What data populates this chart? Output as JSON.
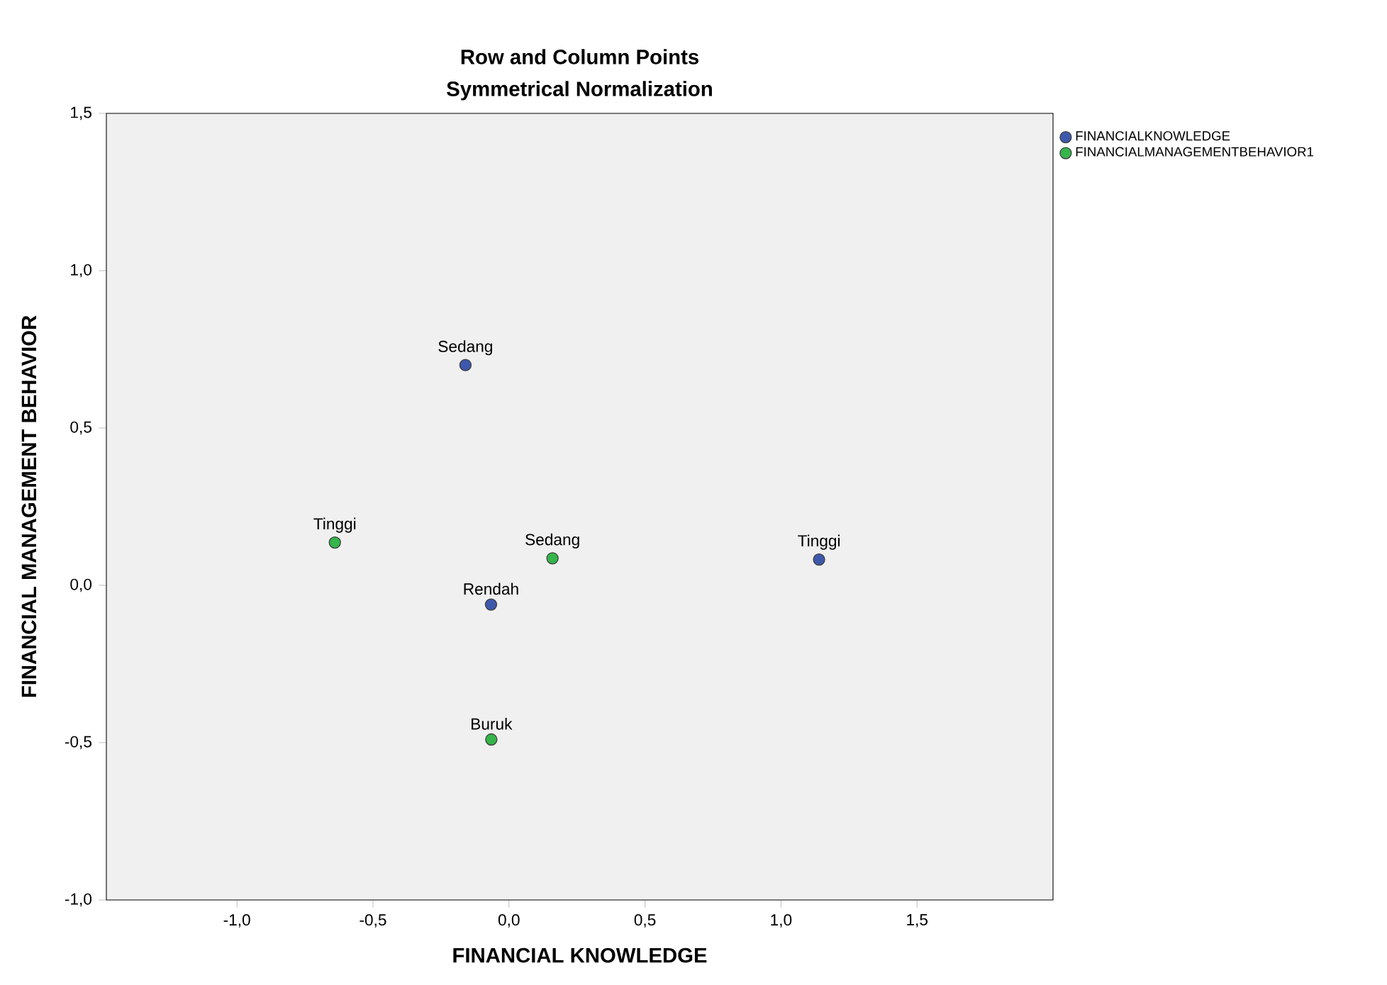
{
  "chart_data": {
    "type": "scatter",
    "title": "Row and Column Points",
    "subtitle": "Symmetrical Normalization",
    "xlabel": "FINANCIAL KNOWLEDGE",
    "ylabel": "FINANCIAL MANAGEMENT BEHAVIOR",
    "xlim": [
      -1.48,
      2.0
    ],
    "ylim": [
      -1.0,
      1.5
    ],
    "xticks": [
      {
        "value": -1.0,
        "label": "-1,0"
      },
      {
        "value": -0.5,
        "label": "-0,5"
      },
      {
        "value": 0.0,
        "label": "0,0"
      },
      {
        "value": 0.5,
        "label": "0,5"
      },
      {
        "value": 1.0,
        "label": "1,0"
      },
      {
        "value": 1.5,
        "label": "1,5"
      }
    ],
    "yticks": [
      {
        "value": -1.0,
        "label": "-1,0"
      },
      {
        "value": -0.5,
        "label": "-0,5"
      },
      {
        "value": 0.0,
        "label": "0,0"
      },
      {
        "value": 0.5,
        "label": "0,5"
      },
      {
        "value": 1.0,
        "label": "1,0"
      },
      {
        "value": 1.5,
        "label": "1,5"
      }
    ],
    "series": [
      {
        "name": "FINANCIALKNOWLEDGE",
        "color": "#3e58ac",
        "x": [
          -0.16,
          -0.066,
          1.14
        ],
        "values": [
          0.7,
          -0.061,
          0.082
        ]
      },
      {
        "name": "FINANCIALMANAGEMENTBEHAVIOR1",
        "color": "#35b54a",
        "x": [
          -0.64,
          0.16,
          -0.065
        ],
        "values": [
          0.136,
          0.086,
          -0.49
        ]
      }
    ],
    "annotations": [
      {
        "text": "Sedang",
        "x": -0.16,
        "y": 0.7
      },
      {
        "text": "Rendah",
        "x": -0.066,
        "y": -0.061
      },
      {
        "text": "Tinggi",
        "x": 1.14,
        "y": 0.082
      },
      {
        "text": "Tinggi",
        "x": -0.64,
        "y": 0.136
      },
      {
        "text": "Sedang",
        "x": 0.16,
        "y": 0.086
      },
      {
        "text": "Buruk",
        "x": -0.065,
        "y": -0.49
      }
    ],
    "marker": "circle",
    "grid": false,
    "legend": "top right"
  }
}
